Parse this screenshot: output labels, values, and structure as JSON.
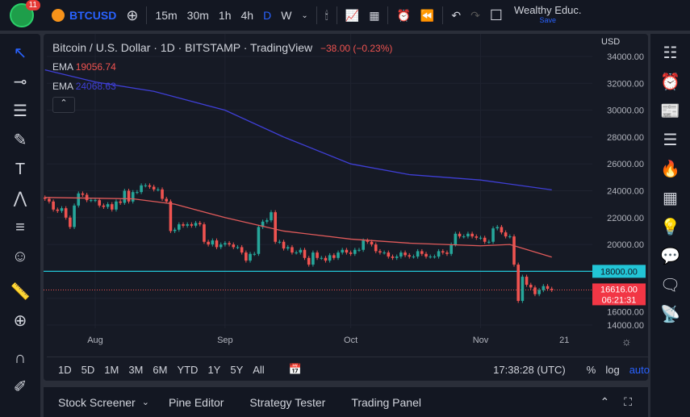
{
  "toolbar": {
    "badge": "11",
    "symbol": "BTCUSD",
    "intervals": [
      "15m",
      "30m",
      "1h",
      "4h",
      "D",
      "W"
    ],
    "active_interval": "D",
    "account": "Wealthy Educ.",
    "save": "Save"
  },
  "legend": {
    "title": "Bitcoin / U.S. Dollar · 1D · BITSTAMP · TradingView",
    "change": "−38.00 (−0.23%)",
    "ema1_label": "EMA",
    "ema1_value": "19056.74",
    "ema2_label": "EMA",
    "ema2_value": "24068.63",
    "currency": "USD"
  },
  "range": {
    "buttons": [
      "1D",
      "5D",
      "1M",
      "3M",
      "6M",
      "YTD",
      "1Y",
      "5Y",
      "All"
    ],
    "time": "17:38:28 (UTC)",
    "pct": "%",
    "log": "log",
    "auto": "auto"
  },
  "bottom": {
    "tabs": [
      "Stock Screener",
      "Pine Editor",
      "Strategy Tester",
      "Trading Panel"
    ]
  },
  "colors": {
    "up": "#26a69a",
    "down": "#ef5350",
    "ema_fast": "#e05a5a",
    "ema_slow": "#3f3fd6",
    "hline": "#22c5d6",
    "accent": "#2962ff"
  },
  "chart_data": {
    "type": "candlestick",
    "start_date": "Jul 20",
    "closes": [
      23400,
      23200,
      22600,
      22500,
      22700,
      22000,
      21300,
      22900,
      23800,
      23700,
      23300,
      23300,
      23300,
      22900,
      22800,
      23000,
      22600,
      23200,
      23100,
      24000,
      23200,
      23900,
      23900,
      24400,
      24400,
      24300,
      24100,
      24100,
      23400,
      23200,
      21000,
      21100,
      21500,
      21400,
      21500,
      21400,
      21600,
      21500,
      20200,
      20000,
      20300,
      19800,
      20000,
      20100,
      20000,
      19800,
      19800,
      19400,
      18800,
      19300,
      19300,
      21300,
      21700,
      21800,
      22400,
      20200,
      20200,
      19700,
      19800,
      19400,
      19400,
      19600,
      19000,
      18500,
      19400,
      19000,
      19000,
      18800,
      19200,
      19000,
      19400,
      19600,
      19400,
      19300,
      19600,
      19600,
      20300,
      20200,
      20000,
      19500,
      19400,
      19400,
      19100,
      19000,
      19100,
      19400,
      19200,
      19100,
      19100,
      19500,
      19300,
      19100,
      19100,
      19100,
      19500,
      19400,
      19300,
      20000,
      20800,
      20600,
      20600,
      20800,
      20600,
      20500,
      20500,
      20200,
      20200,
      21200,
      21300,
      20900,
      20600,
      20600,
      18500,
      15800,
      17600,
      17000,
      16800,
      16300,
      16600,
      16900,
      16700,
      16616
    ],
    "ema_fast": [
      [
        "Jul 20",
        23500
      ],
      [
        "Aug 10",
        23400
      ],
      [
        "Aug 20",
        23000
      ],
      [
        "Sep 1",
        22000
      ],
      [
        "Sep 15",
        21000
      ],
      [
        "Oct 1",
        20400
      ],
      [
        "Oct 15",
        20100
      ],
      [
        "Nov 1",
        19900
      ],
      [
        "Nov 8",
        20000
      ],
      [
        "Nov 18",
        19056.74
      ]
    ],
    "ema_slow": [
      [
        "Jul 20",
        33000
      ],
      [
        "Aug 1",
        32100
      ],
      [
        "Aug 15",
        31400
      ],
      [
        "Sep 1",
        30000
      ],
      [
        "Sep 15",
        28000
      ],
      [
        "Oct 1",
        26000
      ],
      [
        "Oct 15",
        25200
      ],
      [
        "Nov 1",
        24800
      ],
      [
        "Nov 18",
        24068.63
      ]
    ],
    "y_ticks": [
      "34000.00",
      "32000.00",
      "30000.00",
      "28000.00",
      "26000.00",
      "24000.00",
      "22000.00",
      "20000.00",
      "18000.00",
      "16000.00",
      "14000.00"
    ],
    "x_ticks": [
      "Aug",
      "Sep",
      "Oct",
      "Nov",
      "21"
    ],
    "hline": "18000.00",
    "last_price": "16616.00",
    "countdown": "06:21:31",
    "ylim": [
      14000,
      34000
    ]
  }
}
